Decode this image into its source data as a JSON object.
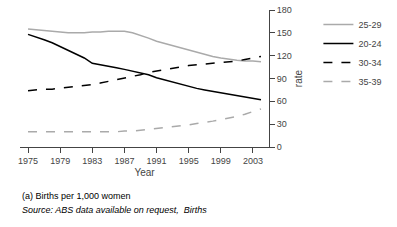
{
  "chart_data": {
    "type": "line",
    "x": [
      1975,
      1976,
      1977,
      1978,
      1979,
      1980,
      1981,
      1982,
      1983,
      1984,
      1985,
      1986,
      1987,
      1988,
      1989,
      1990,
      1991,
      1992,
      1993,
      1994,
      1995,
      1996,
      1997,
      1998,
      1999,
      2000,
      2001,
      2002,
      2003,
      2004
    ],
    "series": [
      {
        "name": "25-29",
        "color": "#aaaaaa",
        "line_style": "solid",
        "values": [
          155,
          154,
          153,
          152,
          151,
          150,
          150,
          150,
          151,
          151,
          152,
          152,
          152,
          150,
          147,
          143,
          139,
          136,
          133,
          130,
          127,
          124,
          121,
          119,
          117,
          115,
          114,
          113,
          113,
          112
        ]
      },
      {
        "name": "20-24",
        "color": "#000000",
        "line_style": "solid",
        "values": [
          148,
          145,
          141,
          137,
          132,
          127,
          122,
          117,
          110,
          108,
          107,
          104,
          102,
          100,
          98,
          95,
          91,
          88,
          85,
          82,
          80,
          77,
          75,
          73,
          71,
          69,
          67,
          65,
          63,
          62
        ]
      },
      {
        "name": "30-34",
        "color": "#000000",
        "line_style": "dashed",
        "values": [
          74,
          75,
          76,
          76,
          77,
          78,
          79,
          81,
          82,
          84,
          86,
          88,
          90,
          92,
          95,
          98,
          100,
          102,
          104,
          106,
          107,
          108,
          109,
          110,
          111,
          112,
          113,
          115,
          117,
          119
        ]
      },
      {
        "name": "35-39",
        "color": "#aaaaaa",
        "line_style": "dashed",
        "values": [
          20,
          20,
          20,
          20,
          20,
          20,
          20,
          20,
          20,
          20,
          20,
          20,
          21,
          21,
          22,
          23,
          24,
          25,
          27,
          28,
          29,
          31,
          32,
          34,
          36,
          38,
          40,
          43,
          46,
          50
        ]
      }
    ],
    "xlabel": "Year",
    "ylabel": "rate",
    "xlim": [
      1974,
      2005
    ],
    "xticks": [
      1975,
      1979,
      1983,
      1987,
      1991,
      1995,
      1999,
      2003
    ],
    "ylim": [
      0,
      180
    ],
    "yticks": [
      0,
      30,
      60,
      90,
      120,
      150,
      180
    ],
    "grid": false,
    "legend": "upper right",
    "annotations": [
      "(a) Births per 1,000 women",
      "Source: ABS data available on request,  Births"
    ]
  }
}
